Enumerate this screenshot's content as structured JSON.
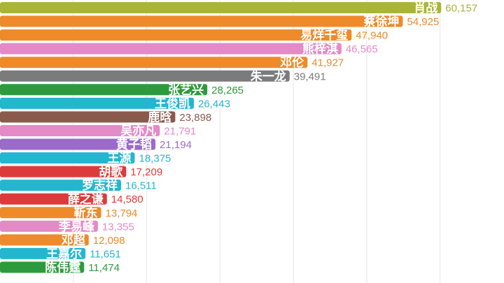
{
  "chart_data": {
    "type": "bar",
    "orientation": "horizontal",
    "title": "",
    "xlabel": "",
    "ylabel": "",
    "xlim": [
      0,
      65000
    ],
    "grid": true,
    "legend": "none",
    "bars": [
      {
        "name": "肖战",
        "value": 60157,
        "value_label": "60,157",
        "color": "#a8b53a"
      },
      {
        "name": "蔡徐坤",
        "value": 54925,
        "value_label": "54,925",
        "color": "#ee8a2a"
      },
      {
        "name": "易烊千玺",
        "value": 47940,
        "value_label": "47,940",
        "color": "#ee8a2a"
      },
      {
        "name": "熊梓淇",
        "value": 46565,
        "value_label": "46,565",
        "color": "#e48ac6"
      },
      {
        "name": "邓伦",
        "value": 41927,
        "value_label": "41,927",
        "color": "#ee8a2a"
      },
      {
        "name": "朱一龙",
        "value": 39491,
        "value_label": "39,491",
        "color": "#7b7b7b"
      },
      {
        "name": "张艺兴",
        "value": 28265,
        "value_label": "28,265",
        "color": "#2e9a3e"
      },
      {
        "name": "王俊凯",
        "value": 26443,
        "value_label": "26,443",
        "color": "#25b6cf"
      },
      {
        "name": "鹿晗",
        "value": 23898,
        "value_label": "23,898",
        "color": "#8a5a4c"
      },
      {
        "name": "吴亦凡",
        "value": 21791,
        "value_label": "21,791",
        "color": "#e48ac6"
      },
      {
        "name": "黄子韬",
        "value": 21194,
        "value_label": "21,194",
        "color": "#9a6bc8"
      },
      {
        "name": "王源",
        "value": 18375,
        "value_label": "18,375",
        "color": "#25b6cf"
      },
      {
        "name": "胡歌",
        "value": 17209,
        "value_label": "17,209",
        "color": "#dc3b3b"
      },
      {
        "name": "罗志祥",
        "value": 16511,
        "value_label": "16,511",
        "color": "#25b6cf"
      },
      {
        "name": "薛之谦",
        "value": 14580,
        "value_label": "14,580",
        "color": "#dc3b3b"
      },
      {
        "name": "靳东",
        "value": 13794,
        "value_label": "13,794",
        "color": "#ee8a2a"
      },
      {
        "name": "李易峰",
        "value": 13355,
        "value_label": "13,355",
        "color": "#e48ac6"
      },
      {
        "name": "邓超",
        "value": 12098,
        "value_label": "12,098",
        "color": "#ee8a2a"
      },
      {
        "name": "王嘉尔",
        "value": 11651,
        "value_label": "11,651",
        "color": "#25b6cf"
      },
      {
        "name": "陈伟霆",
        "value": 11474,
        "value_label": "11,474",
        "color": "#2e9a3e"
      }
    ]
  }
}
